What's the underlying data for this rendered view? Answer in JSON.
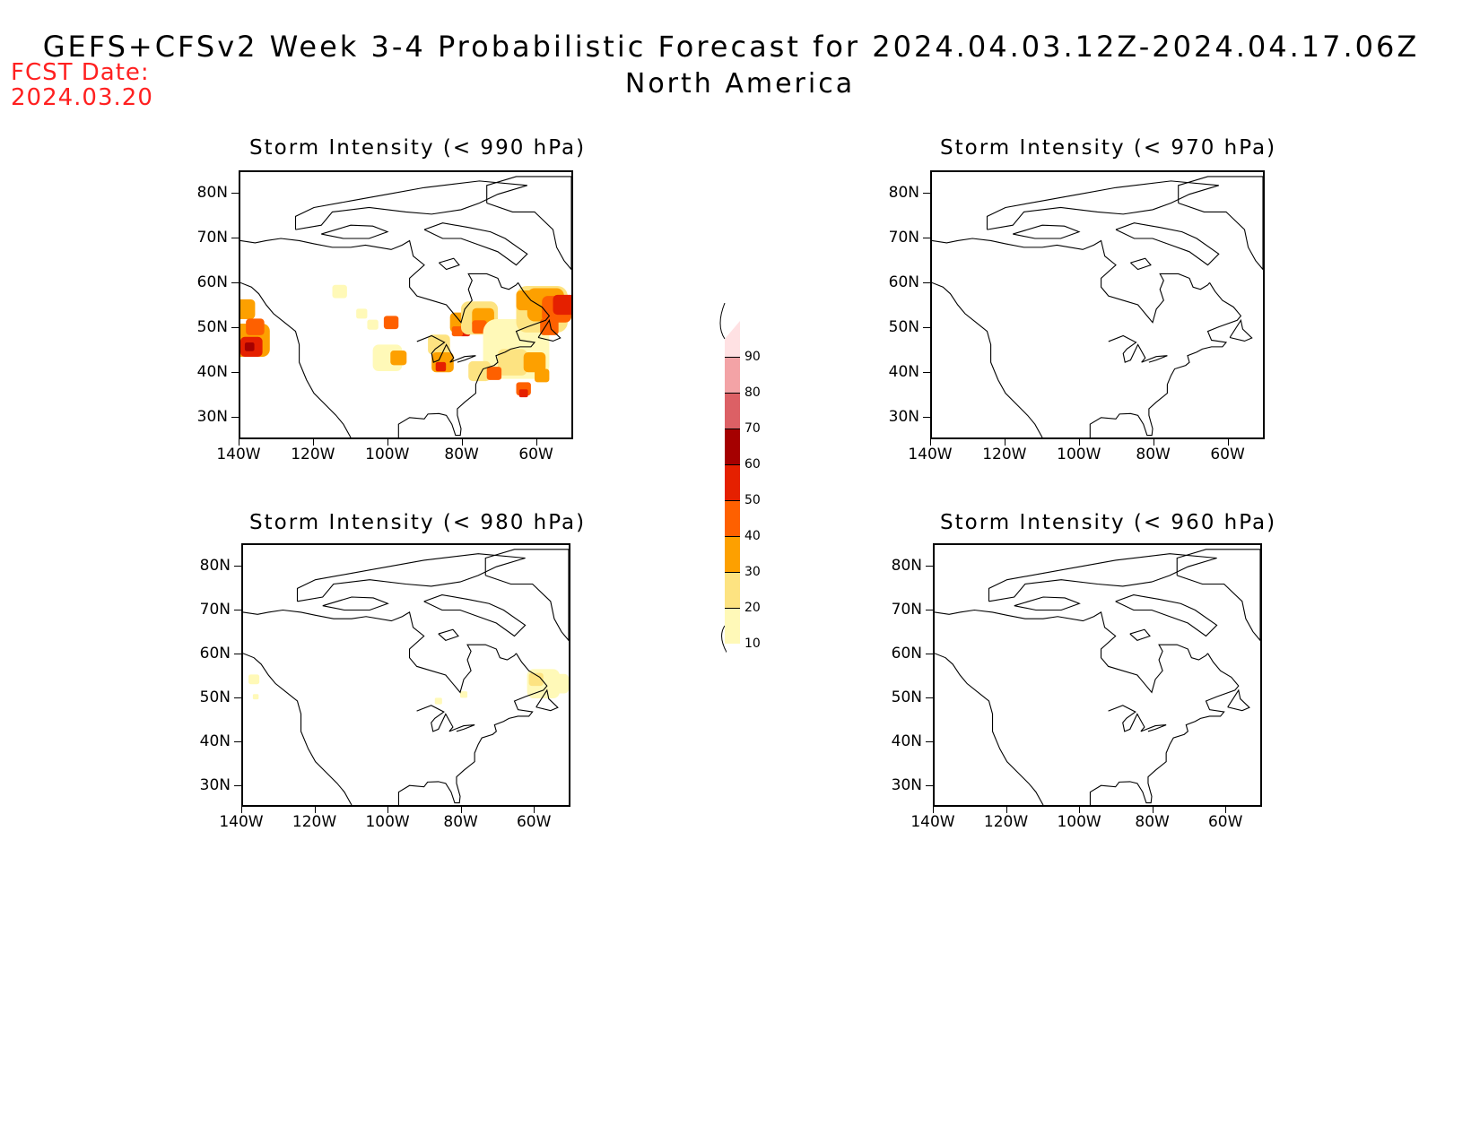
{
  "header": {
    "title": "GEFS+CFSv2 Week 3-4 Probabilistic Forecast for 2024.04.03.12Z-2024.04.17.06Z",
    "region": "North America",
    "fcst_label": "FCST Date:",
    "fcst_date": "2024.03.20"
  },
  "colorbar": {
    "levels": [
      "10",
      "20",
      "30",
      "40",
      "50",
      "60",
      "70",
      "80",
      "90"
    ],
    "colors": [
      "#fff9b8",
      "#fde381",
      "#fda000",
      "#fe6000",
      "#e52000",
      "#a50000",
      "#dc6065",
      "#f3a3a6",
      "#ffe1e3"
    ]
  },
  "axes": {
    "lat_labels": [
      "80N",
      "70N",
      "60N",
      "50N",
      "40N",
      "30N"
    ],
    "lon_labels": [
      "140W",
      "120W",
      "100W",
      "80W",
      "60W"
    ]
  },
  "panels": [
    {
      "title": "Storm Intensity (< 990 hPa)",
      "threshold_hPa": 990,
      "coverage": "widespread"
    },
    {
      "title": "Storm Intensity (< 970 hPa)",
      "threshold_hPa": 970,
      "coverage": "none"
    },
    {
      "title": "Storm Intensity (< 980 hPa)",
      "threshold_hPa": 980,
      "coverage": "sparse"
    },
    {
      "title": "Storm Intensity (< 960 hPa)",
      "threshold_hPa": 960,
      "coverage": "none"
    }
  ]
}
